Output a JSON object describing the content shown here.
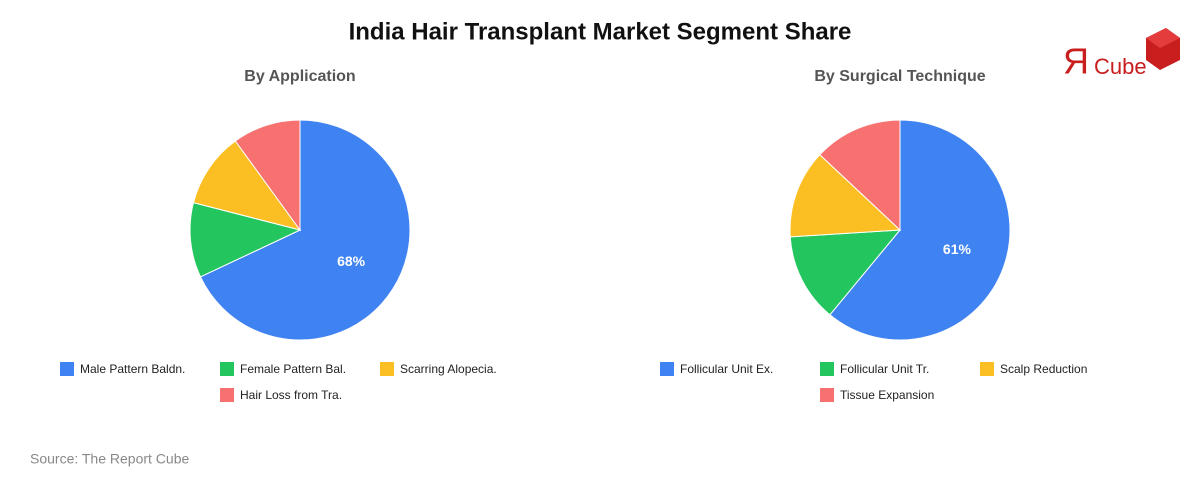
{
  "title": "India Hair Transplant Market Segment Share",
  "logo": {
    "mark": "Я",
    "text": "Cube"
  },
  "source": "Source: The Report Cube",
  "chart_data": [
    {
      "type": "pie",
      "title": "By Application",
      "categories": [
        "Male Pattern Baldn.",
        "Female Pattern Bal.",
        "Scarring Alopecia.",
        "Hair Loss from Tra."
      ],
      "values": [
        68,
        11,
        11,
        10
      ],
      "value_labels": [
        "68%",
        null,
        null,
        null
      ],
      "colors": [
        "#3f83f2",
        "#22c55e",
        "#fbbf24",
        "#f87171"
      ]
    },
    {
      "type": "pie",
      "title": "By Surgical Technique",
      "categories": [
        "Follicular Unit Ex.",
        "Follicular Unit Tr.",
        "Scalp Reduction",
        "Tissue Expansion"
      ],
      "values": [
        61,
        13,
        13,
        13
      ],
      "value_labels": [
        "61%",
        null,
        null,
        null
      ],
      "colors": [
        "#3f83f2",
        "#22c55e",
        "#fbbf24",
        "#f87171"
      ]
    }
  ]
}
